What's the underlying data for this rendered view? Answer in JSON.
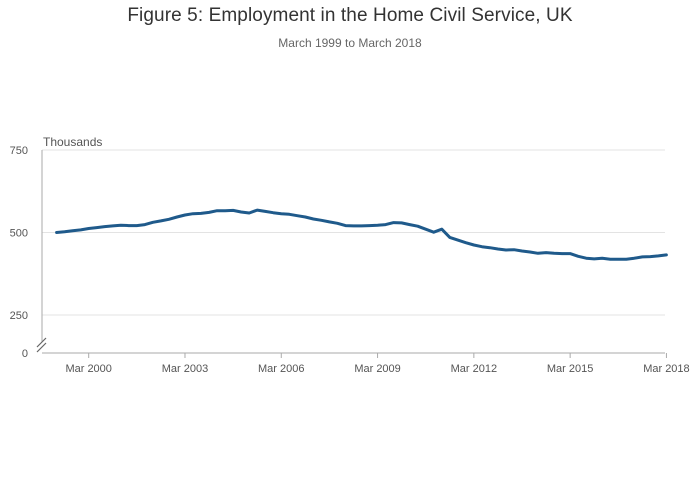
{
  "chart": {
    "title": "Figure 5: Employment in the Home Civil Service, UK",
    "subtitle": "March 1999 to March 2018",
    "y_unit_label": "Thousands"
  },
  "colors": {
    "line": "#1f5a8b",
    "grid": "#e3e3e3",
    "axis": "#aaaaaa",
    "text": "#555555"
  },
  "chart_data": {
    "type": "line",
    "title": "Figure 5: Employment in the Home Civil Service, UK",
    "subtitle": "March 1999 to March 2018",
    "xlabel": "",
    "ylabel": "Thousands",
    "ylim": [
      0,
      750
    ],
    "y_ticks": [
      0,
      250,
      500,
      750
    ],
    "y_axis_break": true,
    "grid": "horizontal",
    "x_tick_labels": [
      "Mar 2000",
      "Mar 2003",
      "Mar 2006",
      "Mar 2009",
      "Mar 2012",
      "Mar 2015",
      "Mar 2018"
    ],
    "x_tick_values": [
      2000.0,
      2003.0,
      2006.0,
      2009.0,
      2012.0,
      2015.0,
      2018.0
    ],
    "series": [
      {
        "values_label": "Thousands",
        "x": [
          1999.0,
          1999.25,
          1999.5,
          1999.75,
          2000.0,
          2000.25,
          2000.5,
          2000.75,
          2001.0,
          2001.25,
          2001.5,
          2001.75,
          2002.0,
          2002.25,
          2002.5,
          2002.75,
          2003.0,
          2003.25,
          2003.5,
          2003.75,
          2004.0,
          2004.25,
          2004.5,
          2004.75,
          2005.0,
          2005.25,
          2005.5,
          2005.75,
          2006.0,
          2006.25,
          2006.5,
          2006.75,
          2007.0,
          2007.25,
          2007.5,
          2007.75,
          2008.0,
          2008.25,
          2008.5,
          2008.75,
          2009.0,
          2009.25,
          2009.5,
          2009.75,
          2010.0,
          2010.25,
          2010.5,
          2010.75,
          2011.0,
          2011.25,
          2011.5,
          2011.75,
          2012.0,
          2012.25,
          2012.5,
          2012.75,
          2013.0,
          2013.25,
          2013.5,
          2013.75,
          2014.0,
          2014.25,
          2014.5,
          2014.75,
          2015.0,
          2015.25,
          2015.5,
          2015.75,
          2016.0,
          2016.25,
          2016.5,
          2016.75,
          2017.0,
          2017.25,
          2017.5,
          2017.75,
          2018.0
        ],
        "values": [
          500,
          502,
          505,
          508,
          512,
          515,
          518,
          520,
          522,
          521,
          521,
          524,
          531,
          535,
          540,
          547,
          553,
          557,
          558,
          561,
          566,
          566,
          567,
          562,
          559,
          568,
          564,
          560,
          557,
          555,
          551,
          547,
          541,
          537,
          532,
          528,
          521,
          520,
          520,
          521,
          522,
          524,
          530,
          529,
          524,
          519,
          510,
          501,
          510,
          485,
          477,
          469,
          462,
          457,
          454,
          450,
          447,
          448,
          444,
          441,
          437,
          439,
          437,
          436,
          436,
          428,
          422,
          420,
          422,
          419,
          419,
          419,
          422,
          426,
          427,
          429,
          432
        ]
      }
    ]
  }
}
